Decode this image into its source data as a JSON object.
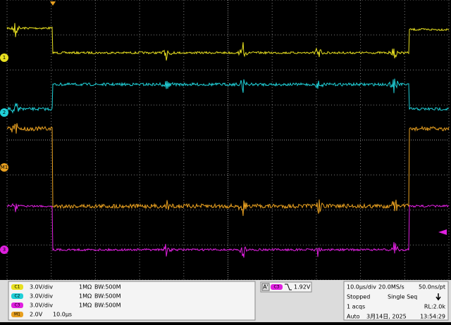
{
  "channels": [
    {
      "badge": "C1",
      "scale": "3.0V/div",
      "coupling": "1MΩ",
      "bandwidth": "BW:500M"
    },
    {
      "badge": "C2",
      "scale": "3.0V/div",
      "coupling": "1MΩ",
      "bandwidth": "BW:500M"
    },
    {
      "badge": "C3",
      "scale": "3.0V/div",
      "coupling": "1MΩ",
      "bandwidth": "BW:500M"
    }
  ],
  "math": {
    "badge": "M1",
    "scale": "2.0V",
    "time": "10.0µs"
  },
  "trigger": {
    "label": "A'",
    "source": "C3",
    "level": "1.92V"
  },
  "timebase": {
    "scale": "10.0µs/div",
    "rate": "20.0MS/s",
    "resolution": "50.0ns/pt",
    "state": "Stopped",
    "mode": "Single Seq",
    "acqs": "1 acqs",
    "record": "RL:2.0k",
    "trigger_mode": "Auto",
    "date": "3月14日, 2025",
    "time": "13:54:29"
  },
  "markers": [
    "1",
    "2",
    "M1",
    "3"
  ]
}
